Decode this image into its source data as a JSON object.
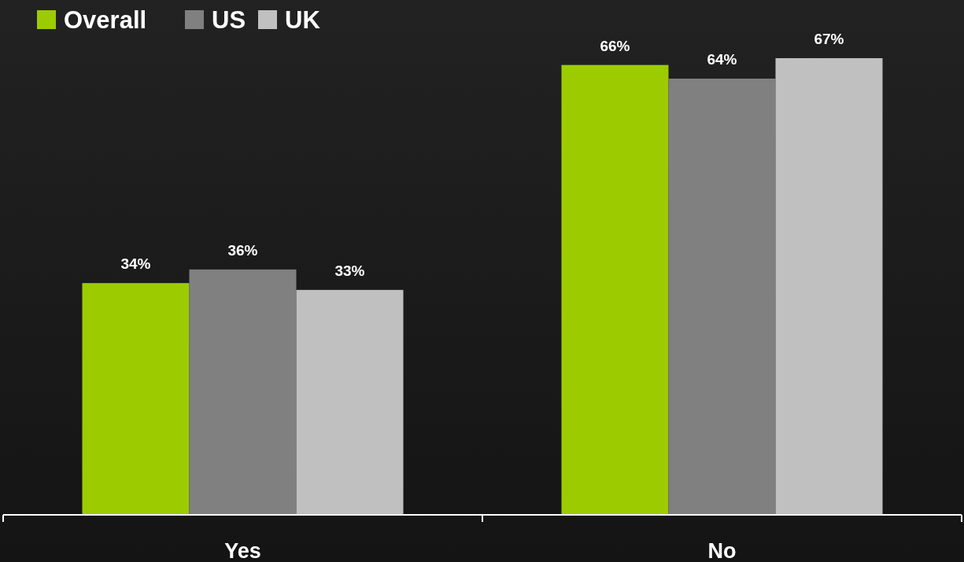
{
  "chart_data": {
    "type": "bar",
    "categories": [
      "Yes",
      "No"
    ],
    "series": [
      {
        "name": "Overall",
        "color": "#9ccc00",
        "values": [
          34,
          66
        ],
        "value_labels": [
          "34%",
          "66%"
        ]
      },
      {
        "name": "US",
        "color": "#808080",
        "values": [
          36,
          64
        ],
        "value_labels": [
          "36%",
          "64%"
        ]
      },
      {
        "name": "UK",
        "color": "#c0c0c0",
        "values": [
          33,
          67
        ],
        "value_labels": [
          "33%",
          "67%"
        ]
      }
    ],
    "legend": "top left",
    "tick_labels": "x"
  }
}
